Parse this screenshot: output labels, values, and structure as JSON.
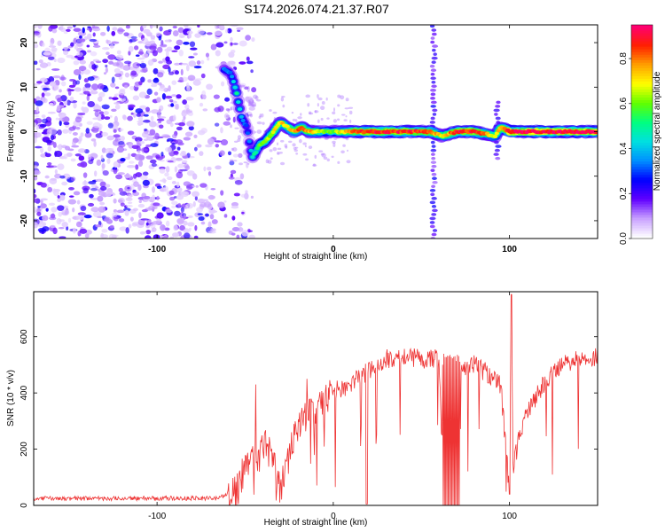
{
  "title": "S174.2026.074.21.37.R07",
  "chart_data": [
    {
      "type": "heatmap",
      "name": "spectrogram",
      "xlabel": "Height of straight line (km)",
      "ylabel": "Frequency (Hz)",
      "xlim": [
        -170,
        150
      ],
      "ylim": [
        -24,
        24
      ],
      "xticks": [
        -100,
        0,
        100
      ],
      "yticks": [
        -20,
        -10,
        0,
        10,
        20
      ],
      "colorbar": {
        "label": "Normalized spectral amplitude",
        "range": [
          0.0,
          0.95
        ],
        "ticks": [
          0.0,
          0.2,
          0.4,
          0.6,
          0.8
        ],
        "colormap": [
          "#ffffff",
          "#c8a0ff",
          "#6000ff",
          "#0000ff",
          "#0090ff",
          "#00e0e0",
          "#00ff80",
          "#60ff00",
          "#ffff00",
          "#ffa000",
          "#ff2000",
          "#ff0070"
        ]
      },
      "ridge": {
        "x": [
          -62,
          -58,
          -55,
          -52,
          -49,
          -46,
          -42,
          -38,
          -34,
          -30,
          -26,
          -22,
          -18,
          -14,
          -10,
          -5,
          0,
          10,
          20,
          40,
          55,
          62,
          70,
          80,
          92,
          95,
          100,
          120,
          150
        ],
        "freq": [
          14,
          13,
          9,
          3,
          1,
          -6,
          -3,
          -2,
          0,
          2,
          1,
          0,
          1,
          0,
          0,
          0,
          0,
          0,
          0,
          0,
          0,
          -1,
          0,
          0,
          -1,
          1,
          0,
          0,
          0
        ],
        "amplitude": [
          0.35,
          0.35,
          0.5,
          0.4,
          0.3,
          0.45,
          0.6,
          0.65,
          0.7,
          0.75,
          0.7,
          0.8,
          0.85,
          0.8,
          0.75,
          0.6,
          0.6,
          0.85,
          0.9,
          0.9,
          0.85,
          0.7,
          0.9,
          0.9,
          0.7,
          0.8,
          0.95,
          0.95,
          0.95
        ]
      },
      "noise_region_x": [
        -170,
        -60
      ],
      "vertical_streaks_x": [
        57,
        93
      ]
    },
    {
      "type": "line",
      "name": "snr",
      "xlabel": "Height of straight line (km)",
      "ylabel": "SNR (10 * v/v)",
      "xlim": [
        -170,
        150
      ],
      "ylim": [
        0,
        760
      ],
      "xticks": [
        -100,
        0,
        100
      ],
      "yticks": [
        0,
        200,
        400,
        600
      ],
      "color": "#ee3333",
      "series": [
        {
          "name": "SNR",
          "x": [
            -170,
            -150,
            -120,
            -90,
            -65,
            -55,
            -50,
            -45,
            -42,
            -40,
            -35,
            -30,
            -25,
            -20,
            -15,
            -10,
            -5,
            0,
            5,
            10,
            20,
            30,
            40,
            50,
            60,
            63,
            70,
            75,
            80,
            90,
            95,
            100,
            101,
            102,
            105,
            110,
            120,
            130,
            140,
            150
          ],
          "y": [
            25,
            25,
            25,
            25,
            25,
            60,
            130,
            200,
            170,
            220,
            180,
            60,
            200,
            280,
            310,
            350,
            370,
            400,
            420,
            430,
            480,
            520,
            535,
            520,
            520,
            0,
            520,
            480,
            500,
            460,
            430,
            50,
            750,
            120,
            230,
            330,
            440,
            500,
            520,
            530
          ]
        }
      ],
      "annotations": {
        "drop_bands_x": [
          [
            62,
            72
          ]
        ],
        "spikes": [
          {
            "x": -44,
            "y": 430
          },
          {
            "x": -15,
            "y": 450
          },
          {
            "x": 13,
            "y": 480
          },
          {
            "x": 101,
            "y": 750
          }
        ],
        "dips": [
          {
            "x": 19,
            "y": 5
          },
          {
            "x": 100,
            "y": 40
          }
        ]
      }
    }
  ]
}
